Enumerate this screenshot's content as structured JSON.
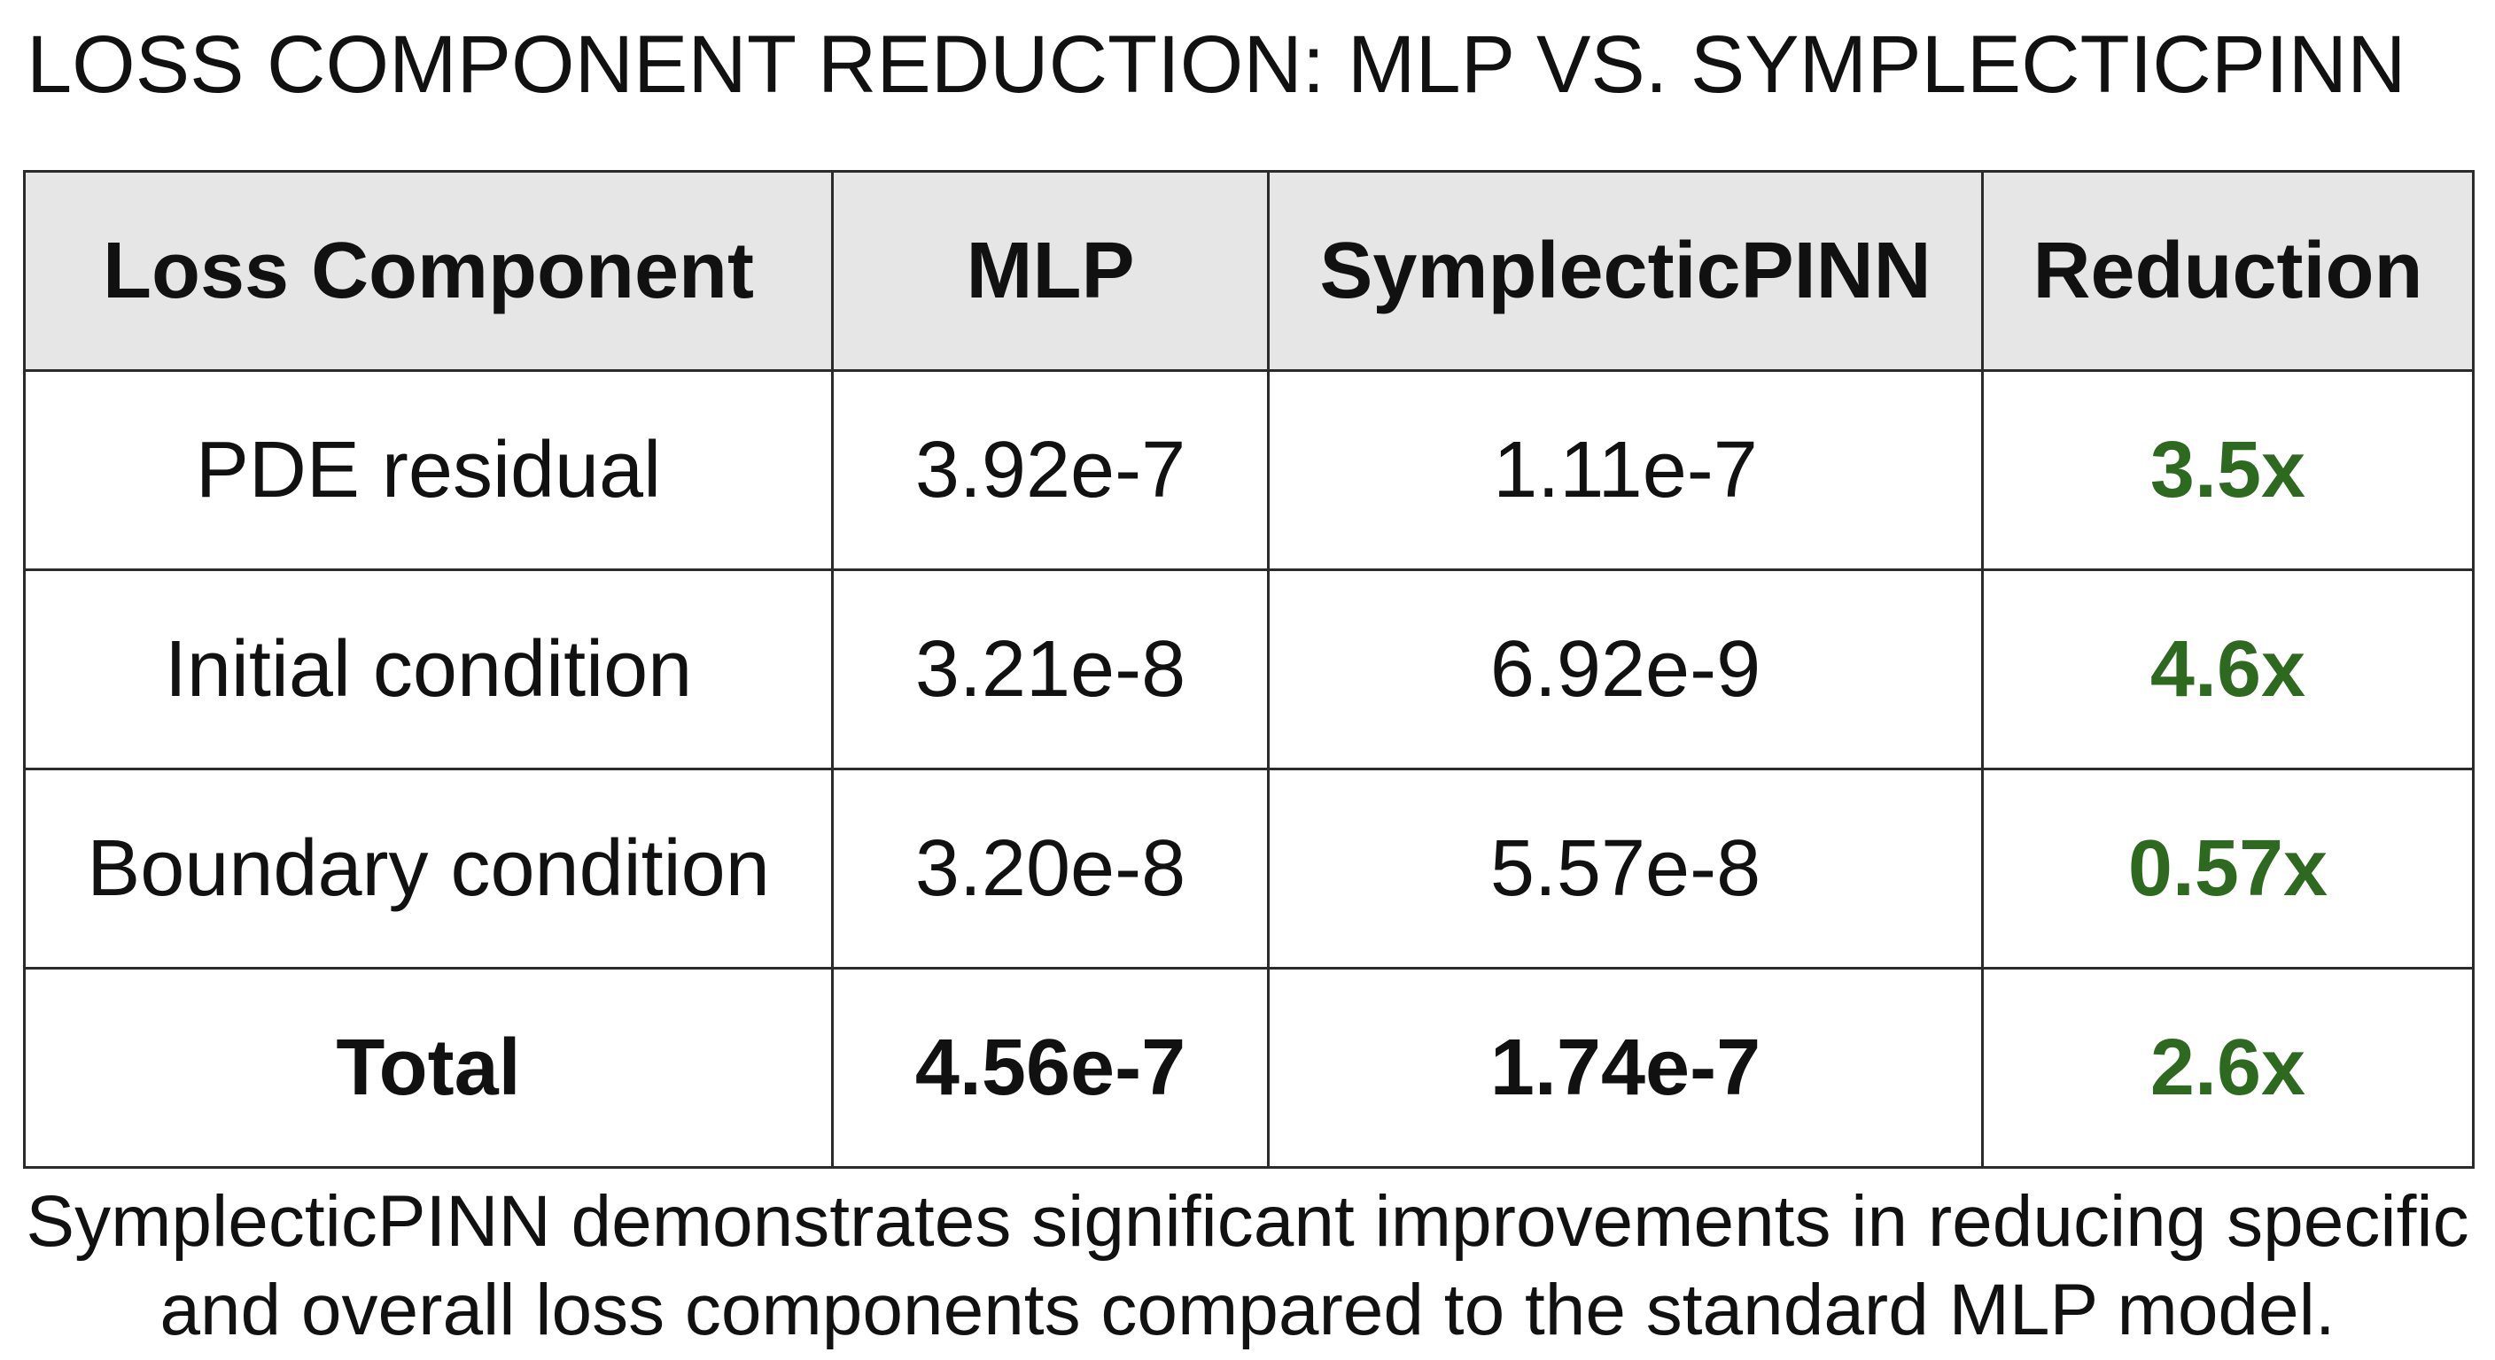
{
  "title": "LOSS COMPONENT REDUCTION: MLP VS. SYMPLECTICPINN",
  "table": {
    "headers": [
      "Loss Component",
      "MLP",
      "SymplecticPINN",
      "Reduction"
    ],
    "rows": [
      [
        "PDE residual",
        "3.92e-7",
        "1.11e-7",
        "3.5x"
      ],
      [
        "Initial condition",
        "3.21e-8",
        "6.92e-9",
        "4.6x"
      ],
      [
        "Boundary condition",
        "3.20e-8",
        "5.57e-8",
        "0.57x"
      ],
      [
        "Total",
        "4.56e-7",
        "1.74e-7",
        "2.6x"
      ]
    ]
  },
  "caption": "SymplecticPINN demonstrates significant improvements in reducing specific and overall loss components compared to the standard MLP model.",
  "colors": {
    "header_background": "#e6e6e6",
    "reduction_text": "#2d6a1f",
    "border": "#2b2b2b"
  },
  "chart_data": {
    "type": "table",
    "title": "LOSS COMPONENT REDUCTION: MLP VS. SYMPLECTICPINN",
    "columns": [
      "Loss Component",
      "MLP",
      "SymplecticPINN",
      "Reduction"
    ],
    "rows": [
      {
        "Loss Component": "PDE residual",
        "MLP": 3.92e-07,
        "SymplecticPINN": 1.11e-07,
        "Reduction": 3.5
      },
      {
        "Loss Component": "Initial condition",
        "MLP": 3.21e-08,
        "SymplecticPINN": 6.92e-09,
        "Reduction": 4.6
      },
      {
        "Loss Component": "Boundary condition",
        "MLP": 3.2e-08,
        "SymplecticPINN": 5.57e-08,
        "Reduction": 0.57
      },
      {
        "Loss Component": "Total",
        "MLP": 4.56e-07,
        "SymplecticPINN": 1.74e-07,
        "Reduction": 2.6
      }
    ]
  }
}
